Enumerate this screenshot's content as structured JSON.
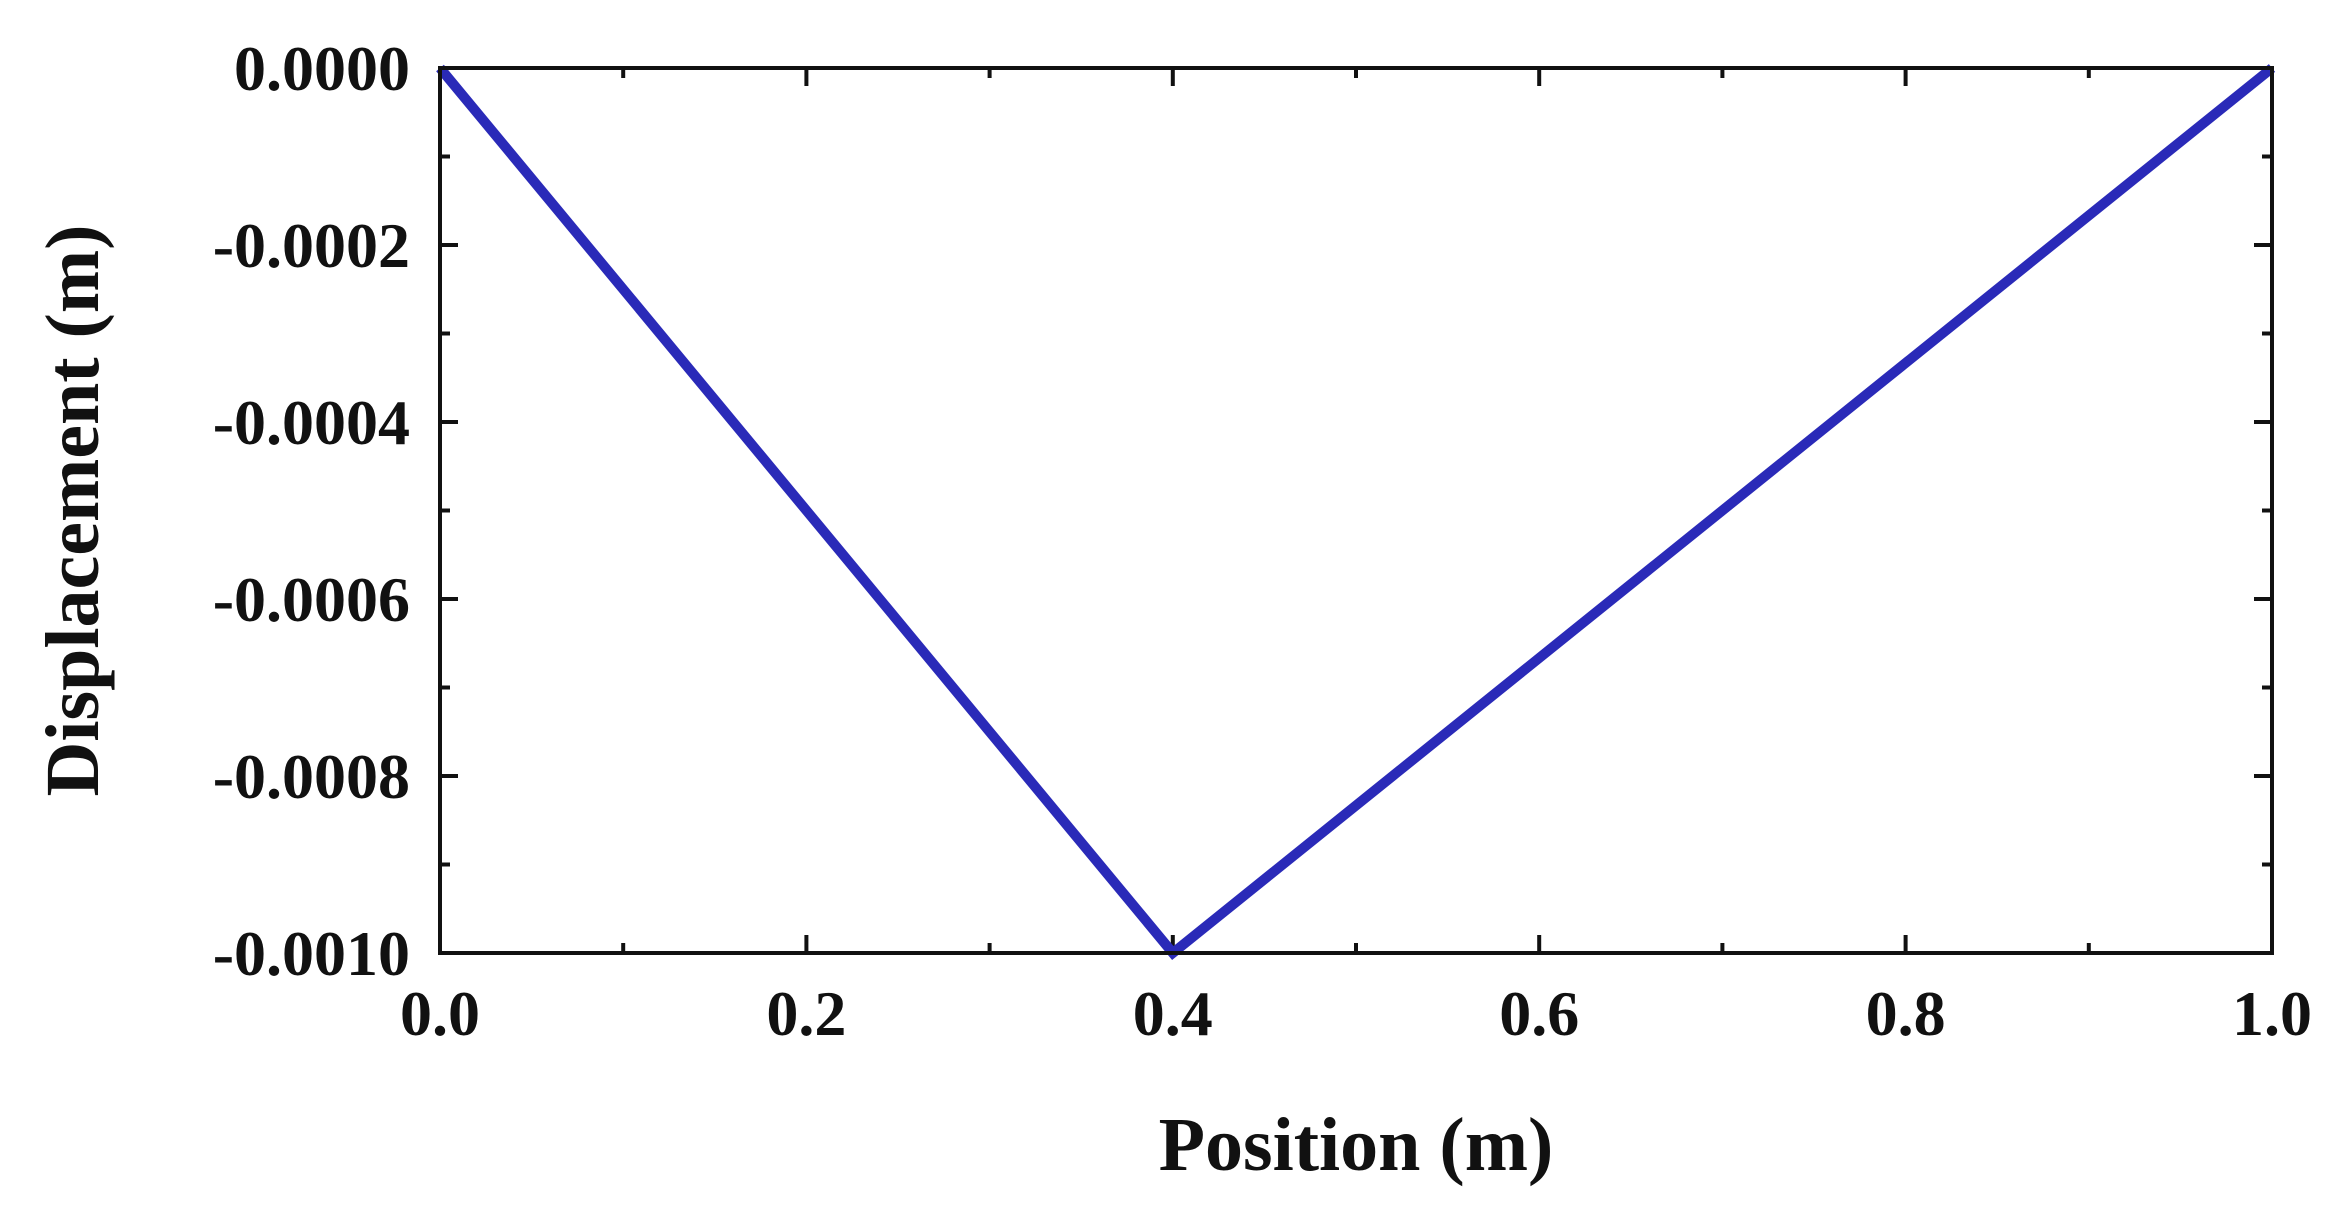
{
  "chart_data": {
    "type": "line",
    "title": "",
    "xlabel": "Position (m)",
    "ylabel": "Displacement (m)",
    "xlim": [
      0.0,
      1.0
    ],
    "ylim": [
      -0.001,
      0.0
    ],
    "x_ticks": [
      "0.0",
      "0.2",
      "0.4",
      "0.6",
      "0.8",
      "1.0"
    ],
    "y_ticks": [
      "0.0000",
      "-0.0002",
      "-0.0004",
      "-0.0006",
      "-0.0008",
      "-0.0010"
    ],
    "grid": false,
    "legend": "none",
    "series": [
      {
        "color": "#2a2ab8",
        "x": [
          0.0,
          0.4,
          1.0
        ],
        "y": [
          0.0,
          -0.001,
          0.0
        ]
      }
    ]
  }
}
